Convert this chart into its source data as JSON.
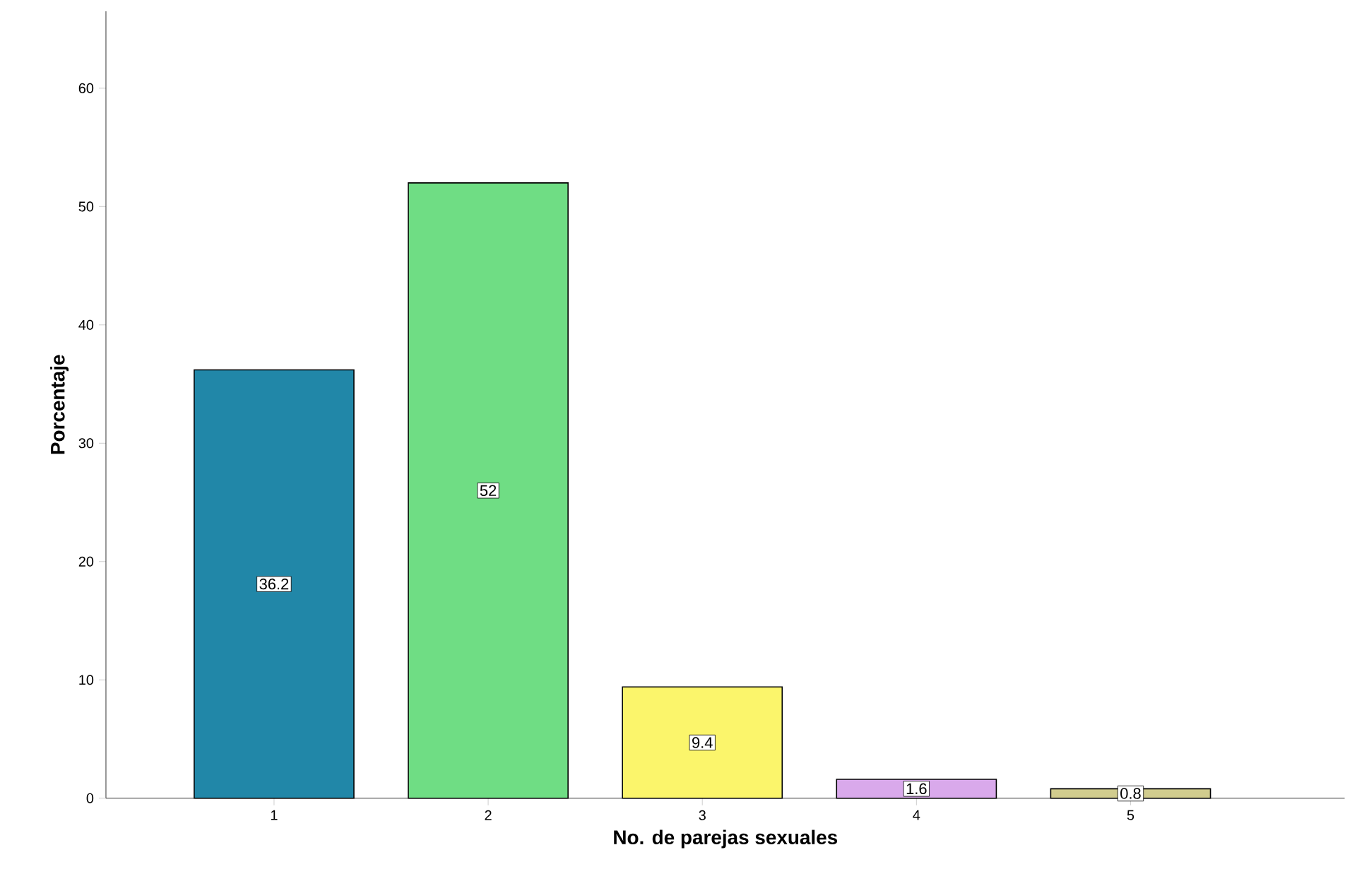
{
  "chart_data": {
    "type": "bar",
    "xlabel": "No. de parejas sexuales",
    "ylabel": "Porcentaje",
    "categories": [
      "1",
      "2",
      "3",
      "4",
      "5"
    ],
    "values": [
      36.2,
      52,
      9.4,
      1.6,
      0.8
    ],
    "colors": [
      "#2187a8",
      "#6fdd84",
      "#fbf56b",
      "#d9a9eb",
      "#d1cc8e"
    ],
    "ylim": [
      0,
      66.5
    ],
    "yticks": [
      0,
      10,
      20,
      30,
      40,
      50,
      60
    ],
    "data_labels": true
  }
}
